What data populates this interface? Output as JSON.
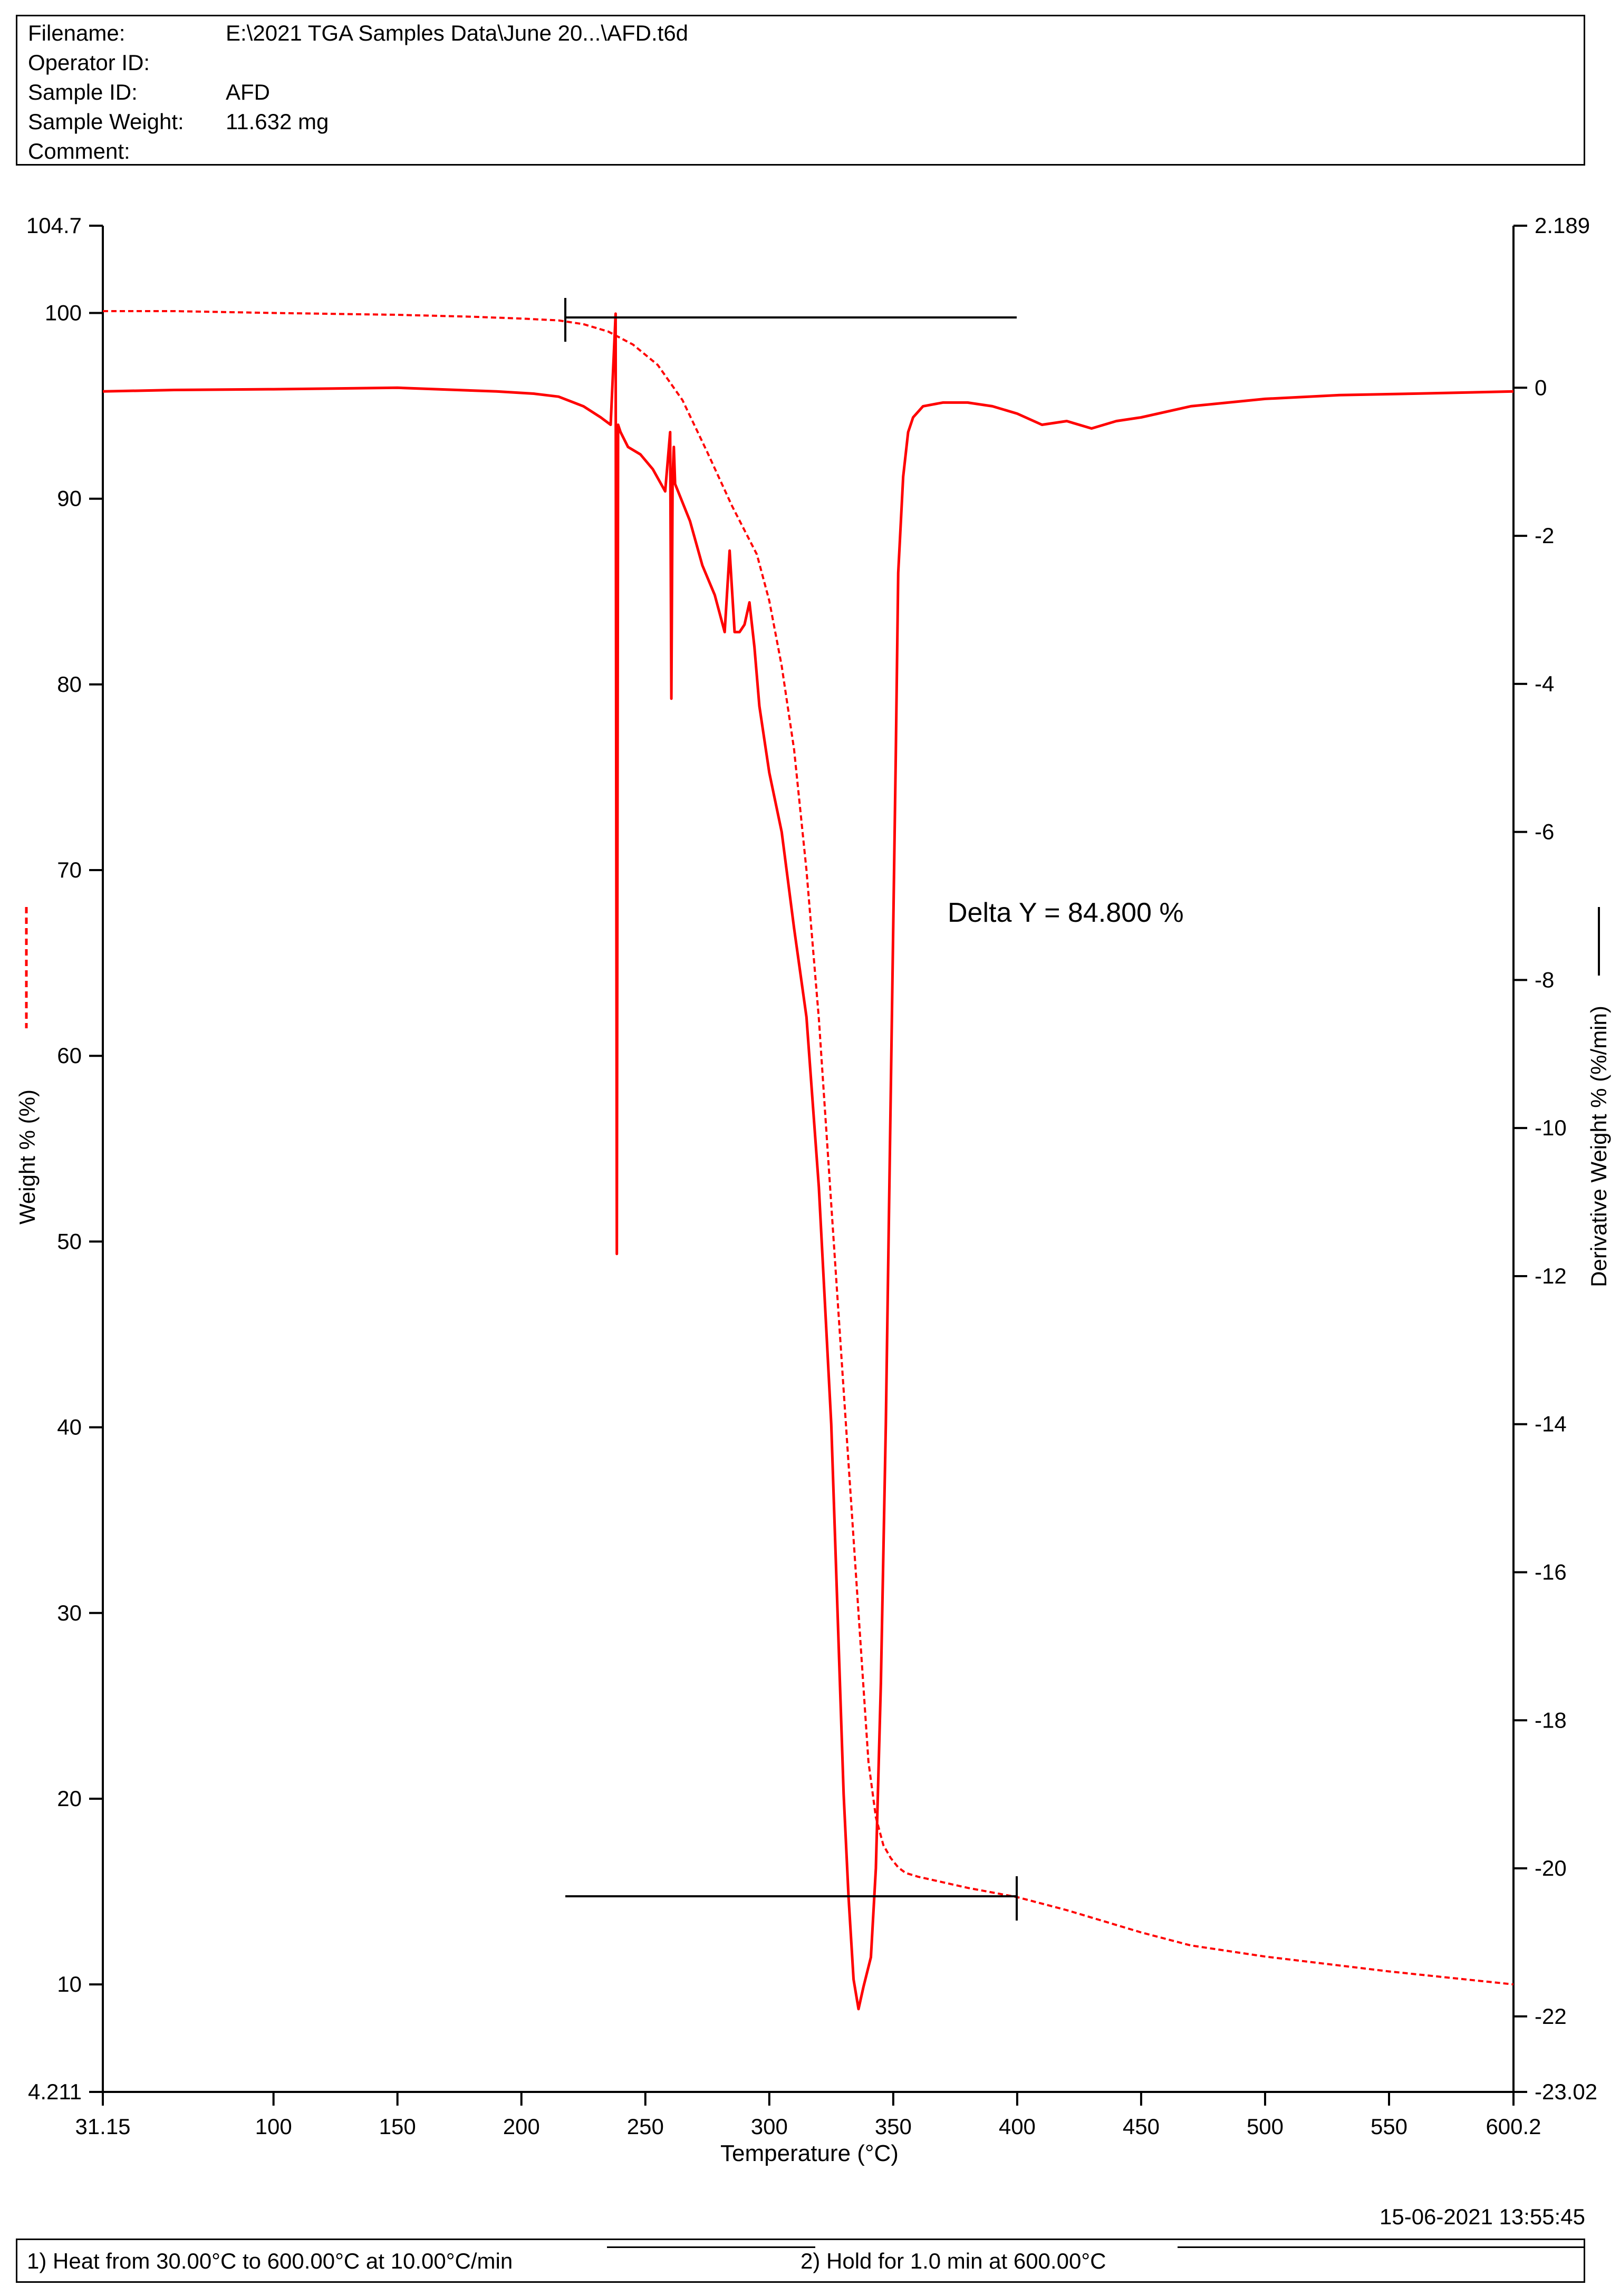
{
  "header": {
    "rows": [
      {
        "label": "Filename:",
        "value": "E:\\2021 TGA Samples Data\\June 20...\\AFD.t6d"
      },
      {
        "label": "Operator ID:",
        "value": ""
      },
      {
        "label": "Sample ID:",
        "value": "AFD"
      },
      {
        "label": "Sample Weight:",
        "value": "11.632 mg"
      },
      {
        "label": "Comment:",
        "value": ""
      }
    ]
  },
  "timestamp": "15-06-2021 13:55:45",
  "footer": {
    "step1": "1)   Heat from 30.00°C to 600.00°C at 10.00°C/min",
    "step2": "2)    Hold for 1.0 min at 600.00°C"
  },
  "chart_data": {
    "type": "line",
    "xlabel": "Temperature (°C)",
    "ylabel_left": "Weight % (%)",
    "ylabel_right": "Derivative Weight % (%/min)",
    "xlim": [
      31.15,
      600.2
    ],
    "ylim_left": [
      4.211,
      104.7
    ],
    "ylim_right": [
      -23.02,
      2.189
    ],
    "x_ticks": [
      "31.15",
      "100",
      "150",
      "200",
      "250",
      "300",
      "350",
      "400",
      "450",
      "500",
      "550",
      "600.2"
    ],
    "x_tick_values": [
      31.15,
      100,
      150,
      200,
      250,
      300,
      350,
      400,
      450,
      500,
      550,
      600.2
    ],
    "y_left_ticks": [
      "104.7",
      "100",
      "90",
      "80",
      "70",
      "60",
      "50",
      "40",
      "30",
      "20",
      "10",
      "4.211"
    ],
    "y_left_tick_values": [
      104.7,
      100,
      90,
      80,
      70,
      60,
      50,
      40,
      30,
      20,
      10,
      4.211
    ],
    "y_right_ticks": [
      "2.189",
      "0",
      "-2",
      "-4",
      "-6",
      "-8",
      "-10",
      "-12",
      "-14",
      "-16",
      "-18",
      "-20",
      "-22",
      "-23.02"
    ],
    "y_right_tick_values": [
      2.189,
      0,
      -2,
      -4,
      -6,
      -8,
      -10,
      -12,
      -14,
      -16,
      -18,
      -20,
      -22,
      -23.02
    ],
    "annotation": "Delta Y = 84.800 %",
    "series_color": "#ff0000",
    "series": [
      {
        "axis": "left",
        "style": "dashed",
        "x": [
          31.15,
          60,
          100,
          150,
          180,
          200,
          215,
          225,
          235,
          245,
          255,
          265,
          275,
          285,
          295,
          300,
          305,
          310,
          315,
          320,
          325,
          330,
          335,
          340,
          343,
          346,
          349,
          352,
          355,
          360,
          370,
          380,
          400,
          420,
          450,
          470,
          500,
          550,
          600.2
        ],
        "y": [
          100.1,
          100.1,
          100.0,
          99.9,
          99.8,
          99.7,
          99.6,
          99.4,
          99.0,
          98.3,
          97.2,
          95.3,
          92.5,
          89.6,
          87.0,
          84.5,
          81.0,
          76.5,
          70.0,
          62.0,
          52.0,
          42.0,
          32.0,
          22.0,
          19.0,
          17.5,
          16.8,
          16.3,
          16.0,
          15.8,
          15.5,
          15.2,
          14.7,
          14.0,
          12.8,
          12.1,
          11.5,
          10.7,
          10.0
        ]
      },
      {
        "axis": "right",
        "style": "solid",
        "x": [
          31.15,
          60,
          100,
          150,
          190,
          205,
          215,
          225,
          232,
          236,
          238,
          238.5,
          239,
          240,
          243,
          248,
          253,
          258,
          260,
          260.5,
          261,
          261.5,
          262,
          268,
          273,
          278,
          282,
          284,
          286,
          288,
          290,
          292,
          294,
          296,
          300,
          305,
          310,
          315,
          320,
          325,
          328,
          330,
          332,
          334,
          336,
          338,
          341,
          343,
          345,
          347,
          349,
          351,
          352,
          354,
          356,
          358,
          362,
          370,
          380,
          390,
          400,
          410,
          420,
          430,
          440,
          450,
          470,
          500,
          530,
          560,
          600.2
        ],
        "y": [
          -0.05,
          -0.03,
          -0.02,
          0.0,
          -0.05,
          -0.08,
          -0.12,
          -0.25,
          -0.4,
          -0.5,
          1.0,
          -11.7,
          -0.5,
          -0.6,
          -0.8,
          -0.9,
          -1.1,
          -1.4,
          -0.6,
          -4.2,
          -1.2,
          -0.8,
          -1.3,
          -1.8,
          -2.4,
          -2.8,
          -3.3,
          -2.2,
          -3.3,
          -3.3,
          -3.2,
          -2.9,
          -3.5,
          -4.3,
          -5.2,
          -6.0,
          -7.3,
          -8.5,
          -10.8,
          -14.0,
          -17.0,
          -19.0,
          -20.4,
          -21.5,
          -21.9,
          -21.6,
          -21.2,
          -20.0,
          -17.5,
          -14.0,
          -9.5,
          -5.0,
          -2.5,
          -1.2,
          -0.6,
          -0.4,
          -0.25,
          -0.2,
          -0.2,
          -0.25,
          -0.35,
          -0.5,
          -0.45,
          -0.55,
          -0.45,
          -0.4,
          -0.25,
          -0.15,
          -0.1,
          -0.08,
          -0.05
        ]
      }
    ]
  }
}
